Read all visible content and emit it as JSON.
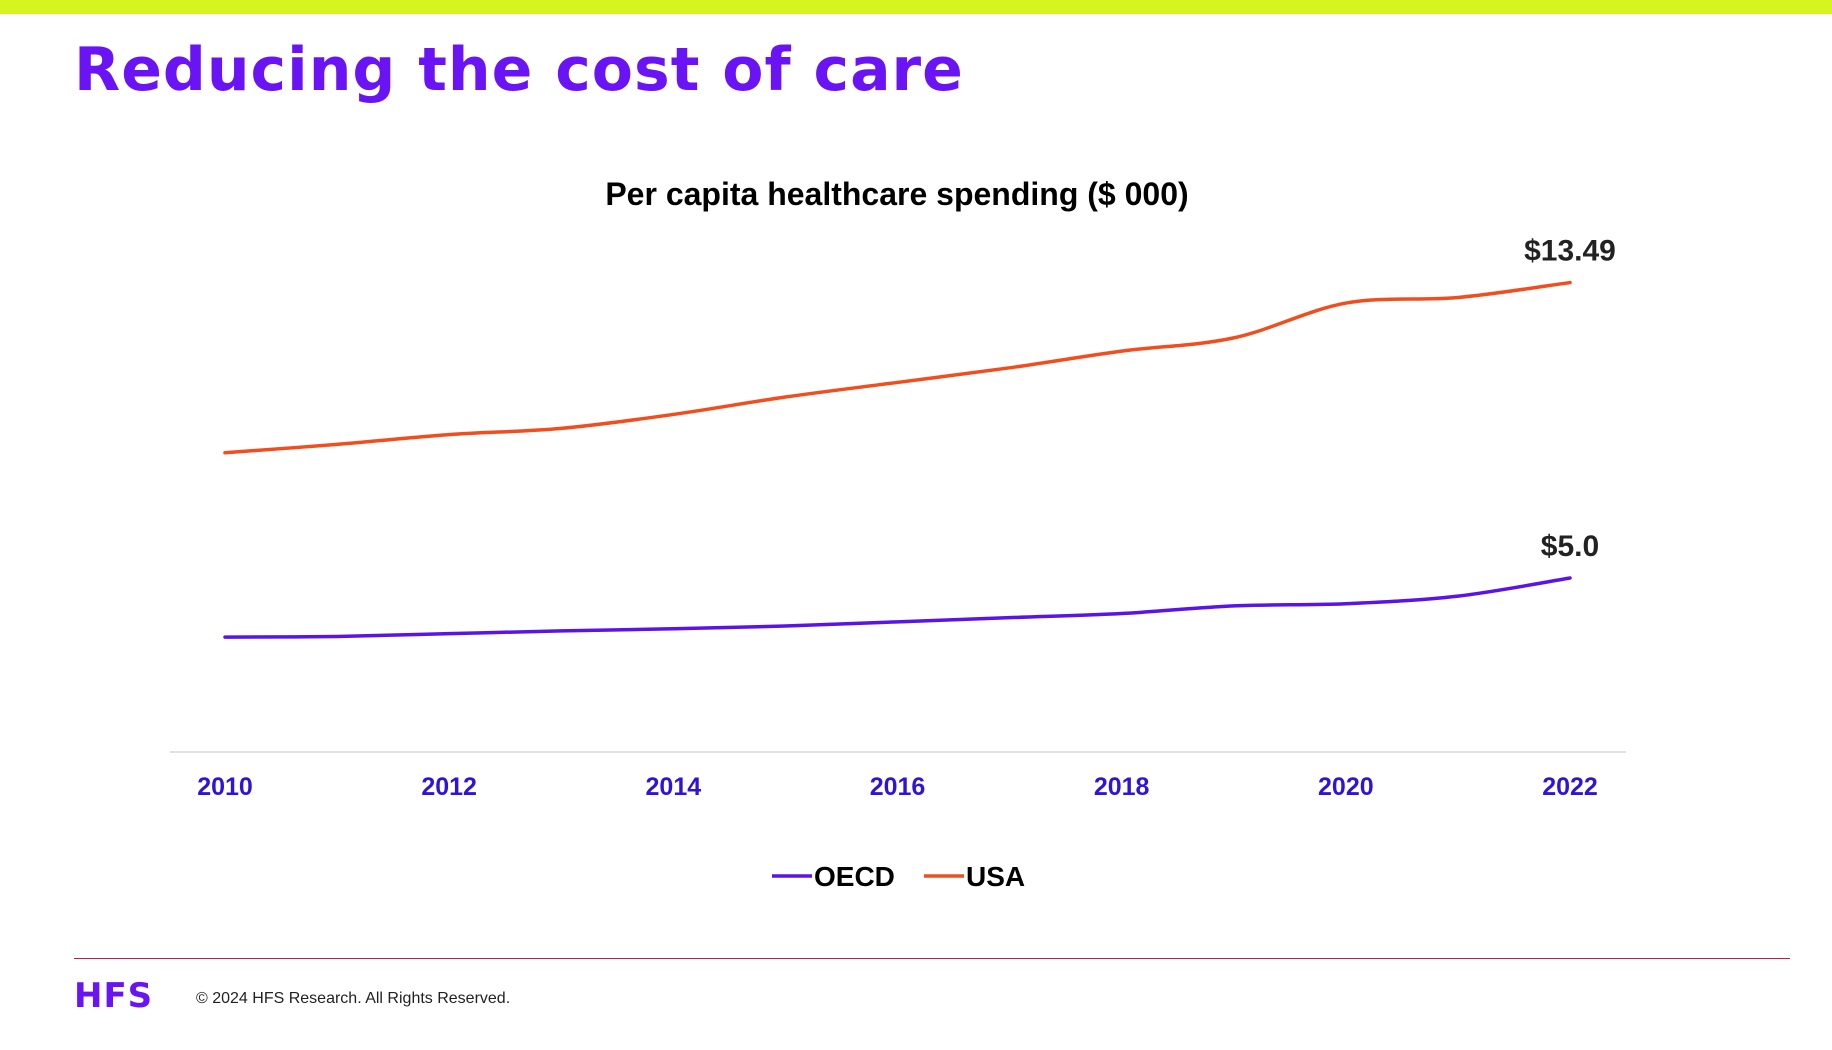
{
  "slide": {
    "title": "Reducing the cost of care"
  },
  "colors": {
    "top_bar": "#d6f51f",
    "title": "#6a14f5",
    "oecd": "#5b14e8",
    "usa": "#f04e1e",
    "tick_label": "#2f13d9",
    "axis_line": "#d9d9d9",
    "footer_rule": "#c2185b",
    "logo": "#6a14f5"
  },
  "chart_data": {
    "type": "line",
    "title": "Per capita healthcare spending ($ 000)",
    "xlabel": "",
    "ylabel": "",
    "x": [
      2010,
      2011,
      2012,
      2013,
      2014,
      2015,
      2016,
      2017,
      2018,
      2019,
      2020,
      2021,
      2022
    ],
    "x_tick_labels": [
      "2010",
      "2012",
      "2014",
      "2016",
      "2018",
      "2020",
      "2022"
    ],
    "ylim": [
      0,
      15
    ],
    "grid": false,
    "y_axis_visible": false,
    "legend_position": "bottom-center",
    "series": [
      {
        "name": "OECD",
        "color": "#5b14e8",
        "values": [
          3.3,
          3.32,
          3.4,
          3.48,
          3.54,
          3.62,
          3.74,
          3.86,
          3.98,
          4.2,
          4.26,
          4.48,
          5.0
        ],
        "end_label": "$5.0"
      },
      {
        "name": "USA",
        "color": "#f04e1e",
        "values": [
          8.6,
          8.84,
          9.12,
          9.3,
          9.7,
          10.2,
          10.62,
          11.04,
          11.52,
          11.9,
          12.9,
          13.06,
          13.49
        ],
        "end_label": "$13.49"
      }
    ]
  },
  "footer": {
    "logo": "HFS",
    "copyright": "© 2024 HFS Research. All Rights Reserved."
  }
}
